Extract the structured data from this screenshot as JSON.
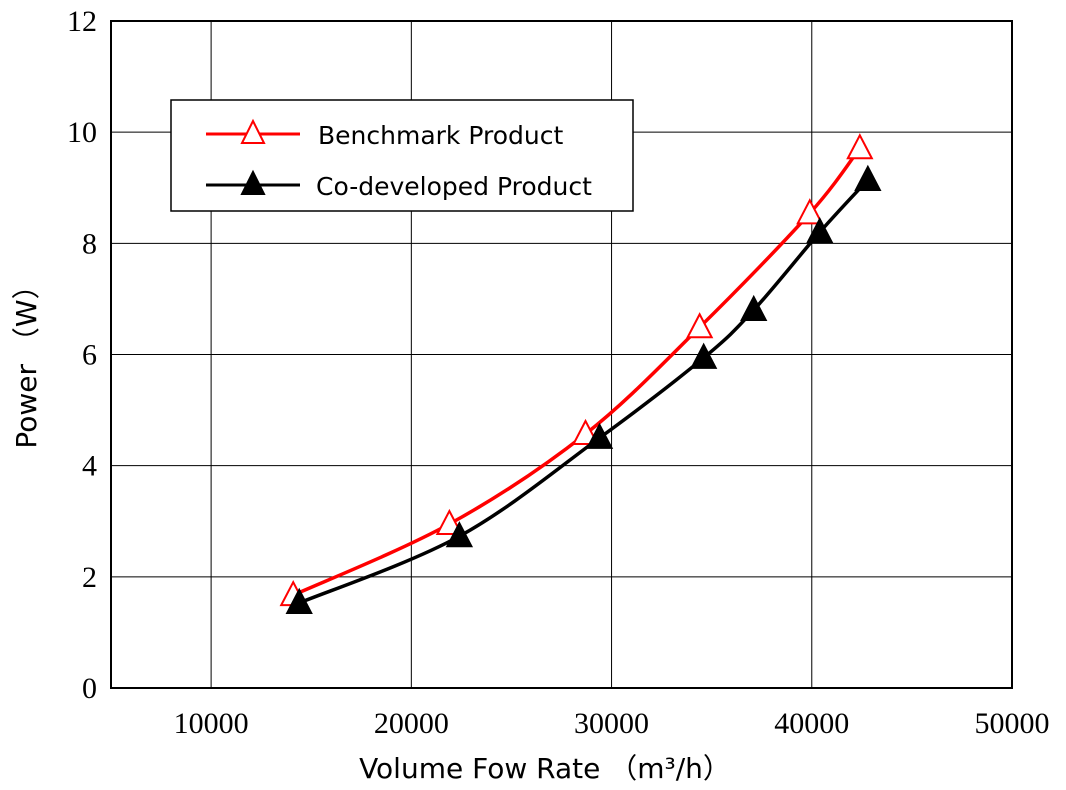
{
  "chart_data": {
    "type": "line",
    "title": "",
    "xlabel": "Volume Fow Rate （m³/h）",
    "ylabel": "Power （W）",
    "xlim": [
      5000,
      50000
    ],
    "ylim": [
      0,
      12
    ],
    "xticks": [
      10000,
      20000,
      30000,
      40000,
      50000
    ],
    "yticks": [
      0,
      2,
      4,
      6,
      8,
      10,
      12
    ],
    "grid": true,
    "legend_position": "top-left",
    "series": [
      {
        "name": "Benchmark Product",
        "color": "#ff0000",
        "marker": "open-triangle",
        "x": [
          14100,
          21900,
          28700,
          34400,
          39900,
          42400
        ],
        "y": [
          1.67,
          2.95,
          4.57,
          6.49,
          8.54,
          9.71
        ]
      },
      {
        "name": "Co-developed Product",
        "color": "#000000",
        "marker": "filled-triangle",
        "x": [
          14400,
          22400,
          29400,
          34600,
          37100,
          40400,
          42800
        ],
        "y": [
          1.53,
          2.73,
          4.5,
          5.94,
          6.8,
          8.2,
          9.14
        ]
      }
    ]
  }
}
